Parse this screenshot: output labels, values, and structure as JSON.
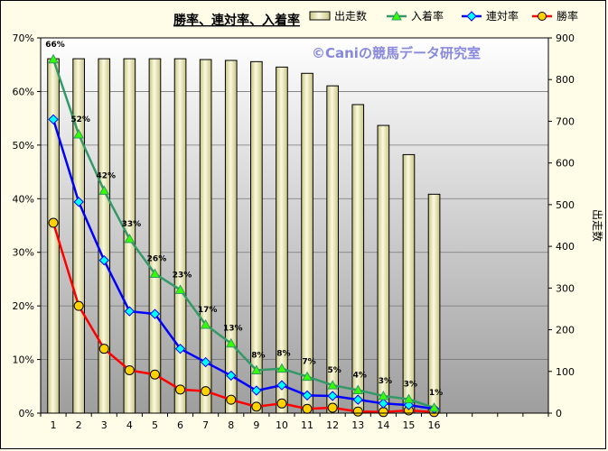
{
  "chart_data": {
    "type": "bar",
    "title": "勝率、連対率、入着率",
    "watermark": "©Caniの競馬データ研究室",
    "categories": [
      "1",
      "2",
      "3",
      "4",
      "5",
      "6",
      "7",
      "8",
      "9",
      "10",
      "11",
      "12",
      "13",
      "14",
      "15",
      "16"
    ],
    "bar_series": {
      "name": "出走数",
      "axis": "right",
      "values": [
        850,
        850,
        850,
        850,
        850,
        850,
        848,
        846,
        843,
        830,
        815,
        785,
        740,
        690,
        620,
        525
      ]
    },
    "line_series": [
      {
        "name": "入着率",
        "color": "#339966",
        "marker": "triangle",
        "values": [
          0.66,
          0.52,
          0.415,
          0.325,
          0.26,
          0.23,
          0.165,
          0.13,
          0.08,
          0.083,
          0.068,
          0.052,
          0.043,
          0.032,
          0.026,
          0.01
        ],
        "labels": [
          "66%",
          "52%",
          "42%",
          "33%",
          "26%",
          "23%",
          "17%",
          "13%",
          "8%",
          "8%",
          "7%",
          "5%",
          "4%",
          "3%",
          "3%",
          "1%"
        ]
      },
      {
        "name": "連対率",
        "color": "#0000ff",
        "marker": "diamond",
        "values": [
          0.548,
          0.394,
          0.285,
          0.19,
          0.185,
          0.12,
          0.095,
          0.07,
          0.042,
          0.052,
          0.033,
          0.032,
          0.025,
          0.018,
          0.015,
          0.008
        ],
        "labels": []
      },
      {
        "name": "勝率",
        "color": "#ff0000",
        "marker": "circle",
        "values": [
          0.355,
          0.2,
          0.12,
          0.08,
          0.072,
          0.044,
          0.041,
          0.025,
          0.012,
          0.018,
          0.008,
          0.01,
          0.003,
          0.002,
          0.005,
          0.002
        ],
        "labels": []
      }
    ],
    "left_axis": {
      "min": 0,
      "max": 0.7,
      "step": 0.1,
      "ticks": [
        "0%",
        "10%",
        "20%",
        "30%",
        "40%",
        "50%",
        "60%",
        "70%"
      ]
    },
    "right_axis": {
      "min": 0,
      "max": 900,
      "step": 100,
      "ticks": [
        "0",
        "100",
        "200",
        "300",
        "400",
        "500",
        "600",
        "700",
        "800",
        "900"
      ],
      "title": "出走数"
    },
    "x_slots": 20,
    "legend_position": "top",
    "colors": {
      "bar_fill_light": "#fbfae0",
      "bar_fill_dark": "#c8c482",
      "plot_gradient_top": "#ffffff",
      "plot_gradient_bottom": "#9e9e9e",
      "marker_fill_triangle": "#33ff00",
      "marker_fill_diamond": "#00ffff",
      "marker_fill_circle": "#ffd200"
    }
  }
}
